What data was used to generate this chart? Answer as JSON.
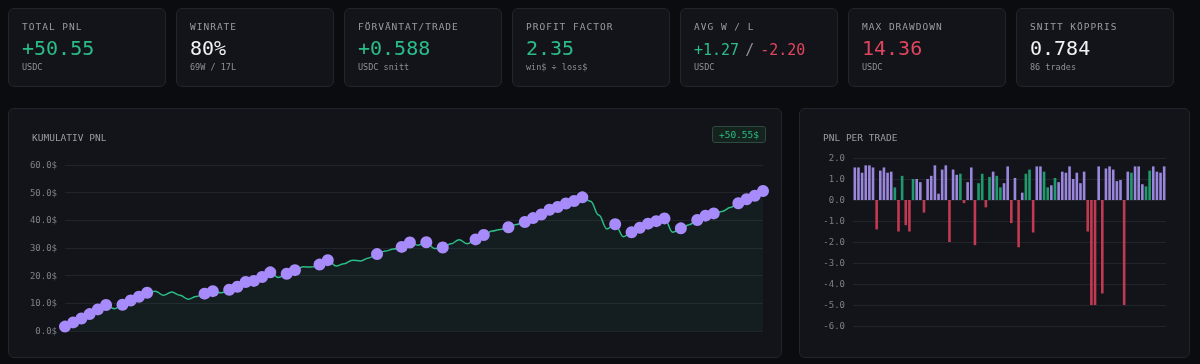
{
  "chart_data": [
    {
      "type": "other",
      "title": "TOTAL PNL",
      "annotations": [
        "+50.55",
        "USDC"
      ]
    },
    {
      "type": "other",
      "title": "WINRATE",
      "annotations": [
        "80%",
        "69W / 17L"
      ]
    },
    {
      "type": "other",
      "title": "FÖRVÄNTAT/TRADE",
      "annotations": [
        "+0.588",
        "USDC snitt"
      ]
    },
    {
      "type": "other",
      "title": "PROFIT FACTOR",
      "annotations": [
        "2.35",
        "win$ ÷ loss$"
      ]
    },
    {
      "type": "other",
      "title": "AVG W / L",
      "annotations": [
        "+1.27",
        "/",
        "-2.20",
        "USDC"
      ]
    },
    {
      "type": "other",
      "title": "MAX DRAWDOWN",
      "annotations": [
        "14.36",
        "USDC"
      ]
    },
    {
      "type": "other",
      "title": "SNITT KÖPPRIS",
      "annotations": [
        "0.784",
        "86 trades"
      ]
    },
    {
      "type": "line",
      "title": "KUMULATIV PNL",
      "annotations": [
        "+50.55$"
      ],
      "grid": "y",
      "categories": [
        null,
        null,
        null,
        null,
        null,
        null,
        null,
        null,
        null,
        null,
        null,
        null,
        null,
        null,
        null,
        null,
        null,
        null,
        null,
        null,
        null,
        null,
        null,
        null,
        null,
        null,
        null,
        null,
        null,
        null,
        null,
        null,
        null,
        null,
        null,
        null,
        null,
        null,
        null,
        null,
        null,
        null,
        null,
        null,
        null,
        null,
        null,
        null,
        null,
        null,
        null,
        null,
        null,
        null,
        null,
        null,
        null,
        null,
        null,
        null,
        null,
        null,
        null,
        null,
        null,
        null,
        null,
        null,
        null,
        null,
        null,
        null,
        null,
        null,
        null,
        null,
        null,
        null,
        null,
        null,
        null,
        null,
        null,
        null,
        null,
        null
      ],
      "ylim": [
        0,
        60
      ],
      "yticks": [
        {
          "value": 0,
          "label": "0.0$"
        },
        {
          "value": 10,
          "label": "10.0$"
        },
        {
          "value": 20,
          "label": "20.0$"
        },
        {
          "value": 30,
          "label": "30.0$"
        },
        {
          "value": 40,
          "label": "40.0$"
        },
        {
          "value": 50,
          "label": "50.0$"
        },
        {
          "value": 60,
          "label": "60.0$"
        }
      ],
      "series": [
        {
          "type": "area",
          "color": "#2bbd87",
          "marker": "none",
          "values": [
            1.6,
            3.1,
            4.5,
            6.1,
            7.8,
            9.4,
            8.0,
            9.5,
            11.0,
            12.4,
            13.8,
            14.4,
            12.9,
            14.1,
            12.9,
            11.5,
            12.5,
            13.5,
            14.4,
            13.8,
            14.9,
            16.0,
            17.7,
            18.1,
            19.5,
            21.2,
            19.3,
            20.7,
            22.0,
            23.2,
            23.1,
            24.0,
            25.6,
            23.5,
            24.3,
            25.6,
            25.3,
            26.4,
            27.8,
            28.9,
            29.6,
            30.4,
            32.0,
            31.0,
            32.1,
            29.8,
            30.2,
            31.5,
            33.0,
            31.5,
            33.1,
            34.7,
            36.1,
            36.7,
            37.5,
            38.5,
            39.4,
            40.8,
            42.1,
            43.8,
            44.8,
            46.1,
            47.0,
            48.3,
            46.9,
            41.9,
            36.9,
            38.6,
            34.1,
            35.7,
            37.3,
            38.8,
            39.7,
            40.7,
            35.7,
            37.1,
            38.4,
            40.1,
            41.7,
            42.5,
            43.2,
            44.6,
            46.2,
            47.6,
            48.9,
            50.6
          ]
        },
        {
          "type": "scatter",
          "color": "#a78bfa",
          "marker": "circle",
          "values": [
            1.6,
            3.1,
            4.5,
            6.1,
            7.8,
            9.4,
            null,
            9.5,
            11.0,
            12.4,
            13.8,
            null,
            null,
            null,
            null,
            null,
            null,
            13.5,
            14.4,
            null,
            14.9,
            16.0,
            17.7,
            18.1,
            19.5,
            21.2,
            null,
            20.7,
            22.0,
            null,
            null,
            24.0,
            25.6,
            null,
            null,
            null,
            null,
            null,
            27.8,
            null,
            null,
            30.4,
            32.0,
            null,
            32.1,
            null,
            30.2,
            null,
            null,
            null,
            33.1,
            34.7,
            null,
            null,
            37.5,
            null,
            39.4,
            40.8,
            42.1,
            43.8,
            44.8,
            46.1,
            47.0,
            48.3,
            null,
            null,
            null,
            38.6,
            null,
            35.7,
            37.3,
            38.8,
            39.7,
            40.7,
            null,
            37.1,
            null,
            40.1,
            41.7,
            42.5,
            null,
            null,
            46.2,
            47.6,
            48.9,
            50.6
          ]
        }
      ]
    },
    {
      "type": "bar",
      "title": "PNL PER TRADE",
      "grid": "y",
      "categories": [
        null,
        null,
        null,
        null,
        null,
        null,
        null,
        null,
        null,
        null,
        null,
        null,
        null,
        null,
        null,
        null,
        null,
        null,
        null,
        null,
        null,
        null,
        null,
        null,
        null,
        null,
        null,
        null,
        null,
        null,
        null,
        null,
        null,
        null,
        null,
        null,
        null,
        null,
        null,
        null,
        null,
        null,
        null,
        null,
        null,
        null,
        null,
        null,
        null,
        null,
        null,
        null,
        null,
        null,
        null,
        null,
        null,
        null,
        null,
        null,
        null,
        null,
        null,
        null,
        null,
        null,
        null,
        null,
        null,
        null,
        null,
        null,
        null,
        null,
        null,
        null,
        null,
        null,
        null,
        null,
        null,
        null,
        null,
        null,
        null,
        null
      ],
      "ylim": [
        -6,
        2
      ],
      "yticks": [
        {
          "value": -6,
          "label": "-6.0"
        },
        {
          "value": -5,
          "label": "-5.0"
        },
        {
          "value": -4,
          "label": "-4.0"
        },
        {
          "value": -3,
          "label": "-3.0"
        },
        {
          "value": -2,
          "label": "-2.0"
        },
        {
          "value": -1,
          "label": "-1.0"
        },
        {
          "value": 0,
          "label": "0.0"
        },
        {
          "value": 1,
          "label": "1.0"
        },
        {
          "value": 2,
          "label": "2.0"
        }
      ],
      "values": [
        1.55,
        1.55,
        1.3,
        1.65,
        1.65,
        1.55,
        -1.4,
        1.4,
        1.55,
        1.3,
        1.35,
        0.6,
        -1.5,
        1.15,
        -1.2,
        -1.5,
        1.0,
        1.0,
        0.85,
        -0.6,
        1.0,
        1.15,
        1.65,
        0.3,
        1.45,
        1.65,
        -2.0,
        1.45,
        1.2,
        1.25,
        -0.15,
        0.85,
        1.55,
        -2.15,
        0.8,
        1.25,
        -0.35,
        1.1,
        1.35,
        1.15,
        0.6,
        0.8,
        1.6,
        -1.1,
        1.05,
        -2.25,
        0.35,
        1.25,
        1.45,
        -1.55,
        1.6,
        1.6,
        1.35,
        0.6,
        0.7,
        1.05,
        0.85,
        1.35,
        1.3,
        1.6,
        1.0,
        1.3,
        0.8,
        1.35,
        -1.5,
        -5.0,
        -5.0,
        1.6,
        -4.45,
        1.5,
        1.6,
        1.45,
        0.9,
        0.95,
        -5.0,
        1.35,
        1.3,
        1.6,
        1.6,
        0.75,
        0.65,
        1.4,
        1.6,
        1.35,
        1.3,
        1.6
      ],
      "colors": [
        "#9a86dc",
        "#9a86dc",
        "#9a86dc",
        "#9a86dc",
        "#9a86dc",
        "#9a86dc",
        "#c23a52",
        "#9a86dc",
        "#9a86dc",
        "#9a86dc",
        "#9a86dc",
        "#1f9a6c",
        "#c23a52",
        "#1f9a6c",
        "#c23a52",
        "#c23a52",
        "#1f9a6c",
        "#9a86dc",
        "#9a86dc",
        "#c23a52",
        "#9a86dc",
        "#9a86dc",
        "#9a86dc",
        "#9a86dc",
        "#9a86dc",
        "#9a86dc",
        "#c23a52",
        "#9a86dc",
        "#9a86dc",
        "#1f9a6c",
        "#c23a52",
        "#9a86dc",
        "#9a86dc",
        "#c23a52",
        "#1f9a6c",
        "#1f9a6c",
        "#c23a52",
        "#1f9a6c",
        "#9a86dc",
        "#1f9a6c",
        "#1f9a6c",
        "#9a86dc",
        "#9a86dc",
        "#c23a52",
        "#9a86dc",
        "#c23a52",
        "#9a86dc",
        "#1f9a6c",
        "#1f9a6c",
        "#c23a52",
        "#9a86dc",
        "#9a86dc",
        "#1f9a6c",
        "#1f9a6c",
        "#9a86dc",
        "#1f9a6c",
        "#9a86dc",
        "#9a86dc",
        "#9a86dc",
        "#9a86dc",
        "#9a86dc",
        "#9a86dc",
        "#9a86dc",
        "#9a86dc",
        "#c23a52",
        "#c23a52",
        "#c23a52",
        "#9a86dc",
        "#c23a52",
        "#9a86dc",
        "#9a86dc",
        "#9a86dc",
        "#9a86dc",
        "#9a86dc",
        "#c23a52",
        "#9a86dc",
        "#1f9a6c",
        "#9a86dc",
        "#9a86dc",
        "#9a86dc",
        "#1f9a6c",
        "#1f9a6c",
        "#9a86dc",
        "#9a86dc",
        "#9a86dc",
        "#9a86dc"
      ]
    }
  ]
}
